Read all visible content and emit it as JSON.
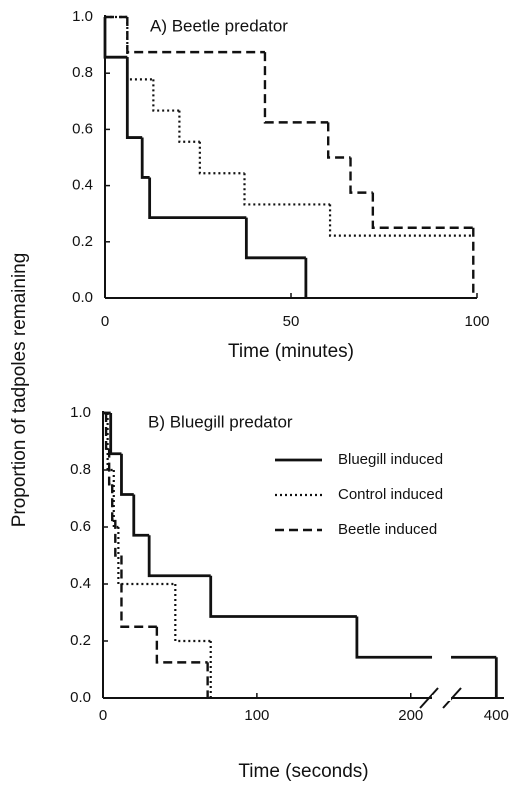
{
  "chart_data": [
    {
      "type": "step",
      "title": "A) Beetle predator",
      "xlabel": "Time (minutes)",
      "ylabel": "Proportion of tadpoles remaining",
      "xlim": [
        0,
        100
      ],
      "xticks": [
        0,
        50,
        100
      ],
      "ylim": [
        0,
        1
      ],
      "yticks": [
        {
          "value": 0,
          "label": "0.0"
        },
        {
          "value": 0.2,
          "label": "0.2"
        },
        {
          "value": 0.4,
          "label": "0.4"
        },
        {
          "value": 0.6,
          "label": "0.6"
        },
        {
          "value": 0.8,
          "label": "0.8"
        },
        {
          "value": 1,
          "label": "1.0"
        }
      ],
      "series": [
        {
          "color": "#111111",
          "dash": "solid",
          "x": [
            0,
            0,
            6,
            10,
            12,
            38,
            54
          ],
          "values": [
            1,
            0.857,
            0.571,
            0.429,
            0.286,
            0.143,
            0
          ]
        },
        {
          "color": "#111111",
          "dash": "dotted",
          "x": [
            0,
            6,
            13,
            20,
            25.5,
            37.5,
            60.5,
            99
          ],
          "values": [
            1,
            0.778,
            0.667,
            0.556,
            0.444,
            0.333,
            0.222,
            0.222
          ]
        },
        {
          "color": "#111111",
          "dash": "dashed",
          "x": [
            0,
            6,
            43,
            60,
            66,
            72,
            99
          ],
          "values": [
            1,
            0.875,
            0.625,
            0.5,
            0.375,
            0.25,
            0
          ]
        }
      ]
    },
    {
      "type": "step",
      "title": "B) Bluegill predator",
      "xlabel": "Time (seconds)",
      "xlim": [
        0,
        405
      ],
      "xticks": [
        0,
        100,
        200,
        400
      ],
      "xbreak": [
        220,
        380
      ],
      "ylim": [
        0,
        1
      ],
      "yticks": [
        {
          "value": 0,
          "label": "0.0"
        },
        {
          "value": 0.2,
          "label": "0.2"
        },
        {
          "value": 0.4,
          "label": "0.4"
        },
        {
          "value": 0.6,
          "label": "0.6"
        },
        {
          "value": 0.8,
          "label": "0.8"
        },
        {
          "value": 1,
          "label": "1.0"
        }
      ],
      "legend": "upper right",
      "series": [
        {
          "name": "Bluegill induced",
          "color": "#111111",
          "dash": "solid",
          "x": [
            0,
            5,
            12,
            20,
            30,
            70,
            165,
            400
          ],
          "values": [
            1,
            0.857,
            0.714,
            0.571,
            0.429,
            0.286,
            0.143,
            0
          ]
        },
        {
          "name": "Control induced",
          "color": "#111111",
          "dash": "dotted",
          "x": [
            0,
            3,
            7,
            10,
            47,
            70
          ],
          "values": [
            1,
            0.8,
            0.6,
            0.4,
            0.2,
            0
          ]
        },
        {
          "name": "Beetle induced",
          "color": "#111111",
          "dash": "dashed",
          "x": [
            0,
            2,
            4,
            6,
            8,
            12,
            35,
            68
          ],
          "values": [
            1,
            0.875,
            0.75,
            0.625,
            0.5,
            0.25,
            0.125,
            0
          ]
        }
      ]
    }
  ]
}
